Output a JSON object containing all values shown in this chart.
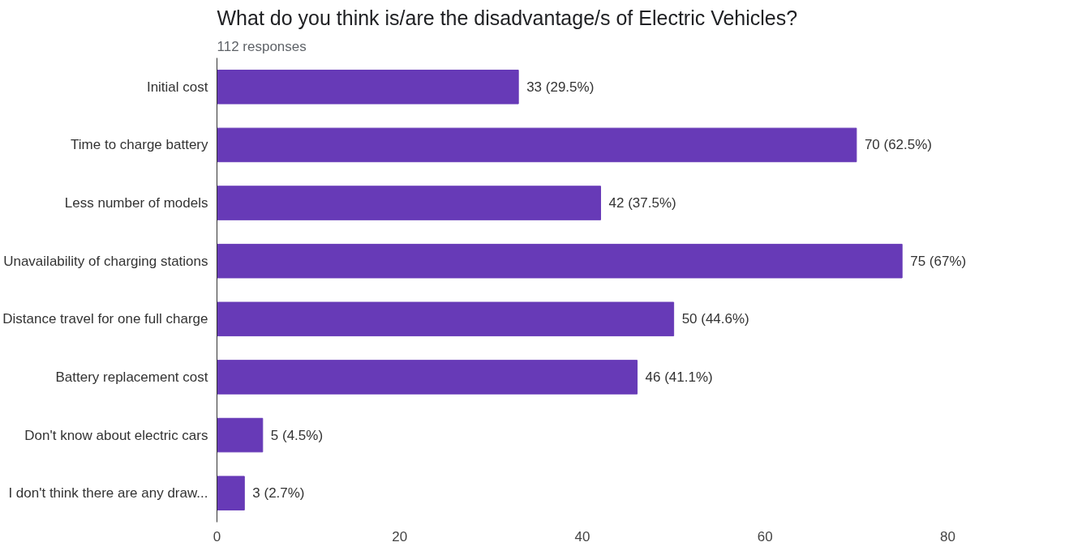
{
  "chart_data": {
    "type": "bar",
    "orientation": "horizontal",
    "title": "What do you think is/are the disadvantage/s of Electric Vehicles?",
    "subtitle": "112 responses",
    "categories": [
      "Initial cost",
      "Time to charge battery",
      "Less number of models",
      "Unavailability of charging stations",
      "Distance travel for one full charge",
      "Battery replacement cost",
      "Don't know about electric cars",
      "I don't think there are any draw..."
    ],
    "values": [
      33,
      70,
      42,
      75,
      50,
      46,
      5,
      3
    ],
    "color": "#673ab7",
    "value_labels": [
      "33 (29.5%)",
      "70 (62.5%)",
      "42 (37.5%)",
      "75 (67%)",
      "50 (44.6%)",
      "46 (41.1%)",
      "5 (4.5%)",
      "3 (2.7%)"
    ],
    "xlim": [
      0,
      80
    ],
    "xticks": [
      0,
      20,
      40,
      60,
      80
    ],
    "grid": false
  }
}
